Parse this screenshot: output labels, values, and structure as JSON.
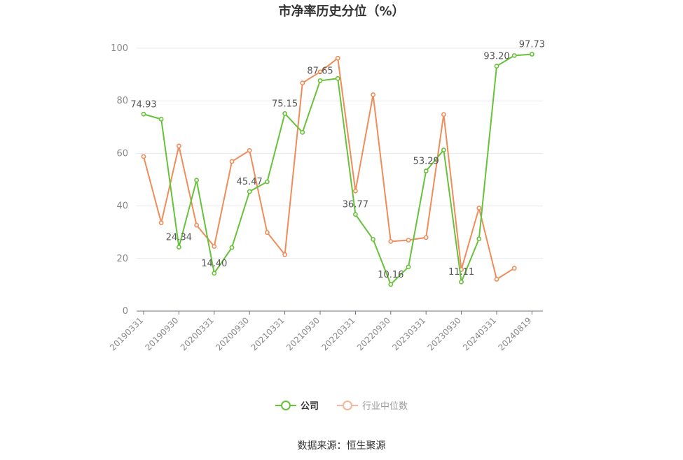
{
  "chart_data": {
    "type": "line",
    "title": "市净率历史分位（%）",
    "source": "数据来源：恒生聚源",
    "ylim": [
      0,
      100
    ],
    "yticks": [
      0,
      20,
      40,
      60,
      80,
      100
    ],
    "x": [
      "20190331",
      "20190630",
      "20190930",
      "20191231",
      "20200331",
      "20200630",
      "20200930",
      "20201231",
      "20210331",
      "20210630",
      "20210930",
      "20211231",
      "20220331",
      "20220630",
      "20220930",
      "20221231",
      "20230331",
      "20230630",
      "20230930",
      "20231231",
      "20240331",
      "20240630",
      "20240819"
    ],
    "x_tick_labels": [
      "20190331",
      "20190930",
      "20200331",
      "20200930",
      "20210331",
      "20210930",
      "20220331",
      "20220930",
      "20230331",
      "20230930",
      "20240331",
      "20240819"
    ],
    "grid": "horizontal",
    "legend_position": "bottom",
    "series": [
      {
        "name": "公司",
        "color": "#67c23a",
        "values": [
          74.93,
          73.0,
          24.34,
          49.8,
          14.4,
          24.2,
          45.47,
          49.2,
          75.15,
          68.0,
          87.65,
          88.5,
          36.77,
          27.3,
          10.16,
          16.8,
          53.29,
          61.3,
          11.11,
          27.5,
          93.2,
          97.2,
          97.73
        ],
        "labels": {
          "0": "74.93",
          "2": "24.34",
          "4": "14.40",
          "6": "45.47",
          "8": "75.15",
          "10": "87.65",
          "12": "36.77",
          "14": "10.16",
          "16": "53.29",
          "18": "11.11",
          "20": "93.20",
          "22": "97.73"
        }
      },
      {
        "name": "行业中位数",
        "color": "#f08c5a",
        "values": [
          58.8,
          33.6,
          62.8,
          32.7,
          24.6,
          56.9,
          61.1,
          29.9,
          21.5,
          86.8,
          91.0,
          96.2,
          45.7,
          82.3,
          26.5,
          27.0,
          28.0,
          74.8,
          15.8,
          39.2,
          12.1,
          16.3,
          null
        ]
      }
    ]
  }
}
